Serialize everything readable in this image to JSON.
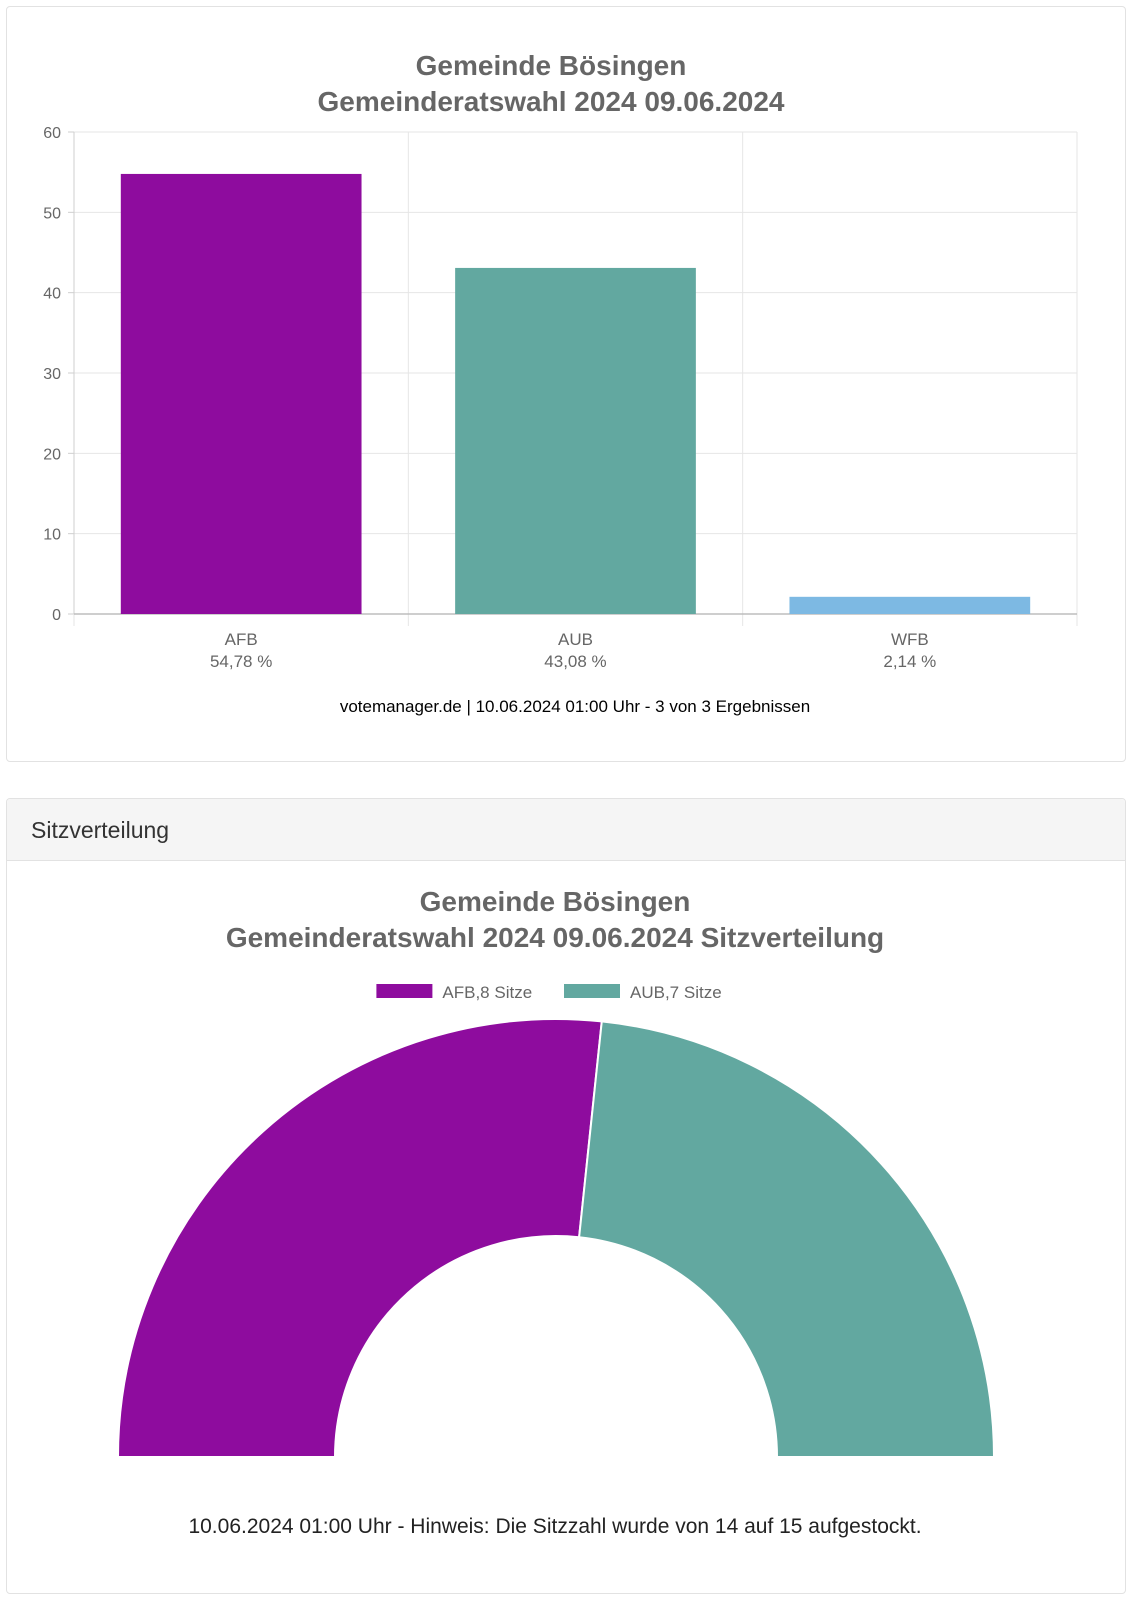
{
  "chart_data": [
    {
      "type": "bar",
      "title": [
        "Gemeinde Bösingen",
        "Gemeinderatswahl 2024 09.06.2024"
      ],
      "categories": [
        "AFB",
        "AUB",
        "WFB"
      ],
      "category_sublabels": [
        "54,78 %",
        "43,08 %",
        "2,14 %"
      ],
      "values": [
        54.78,
        43.08,
        2.14
      ],
      "colors": [
        "#8e0c9e",
        "#62a8a0",
        "#7db9e3"
      ],
      "ylim": [
        0,
        60
      ],
      "yticks": [
        0,
        10,
        20,
        30,
        40,
        50,
        60
      ],
      "grid": true,
      "xlabel": "",
      "ylabel": "",
      "footer": "votemanager.de | 10.06.2024 01:00 Uhr - 3 von 3 Ergebnissen"
    },
    {
      "type": "pie",
      "variant": "half-donut",
      "panel_header": "Sitzverteilung",
      "title": [
        "Gemeinde Bösingen",
        "Gemeinderatswahl 2024 09.06.2024 Sitzverteilung"
      ],
      "categories": [
        "AFB",
        "AUB"
      ],
      "values": [
        8,
        7
      ],
      "legend_labels": [
        "AFB,8 Sitze",
        "AUB,7 Sitze"
      ],
      "legend_position": "top",
      "colors": [
        "#8e0c9e",
        "#62a8a0"
      ],
      "footer": "10.06.2024 01:00 Uhr - Hinweis: Die Sitzzahl wurde von 14 auf 15 aufgestockt."
    }
  ]
}
